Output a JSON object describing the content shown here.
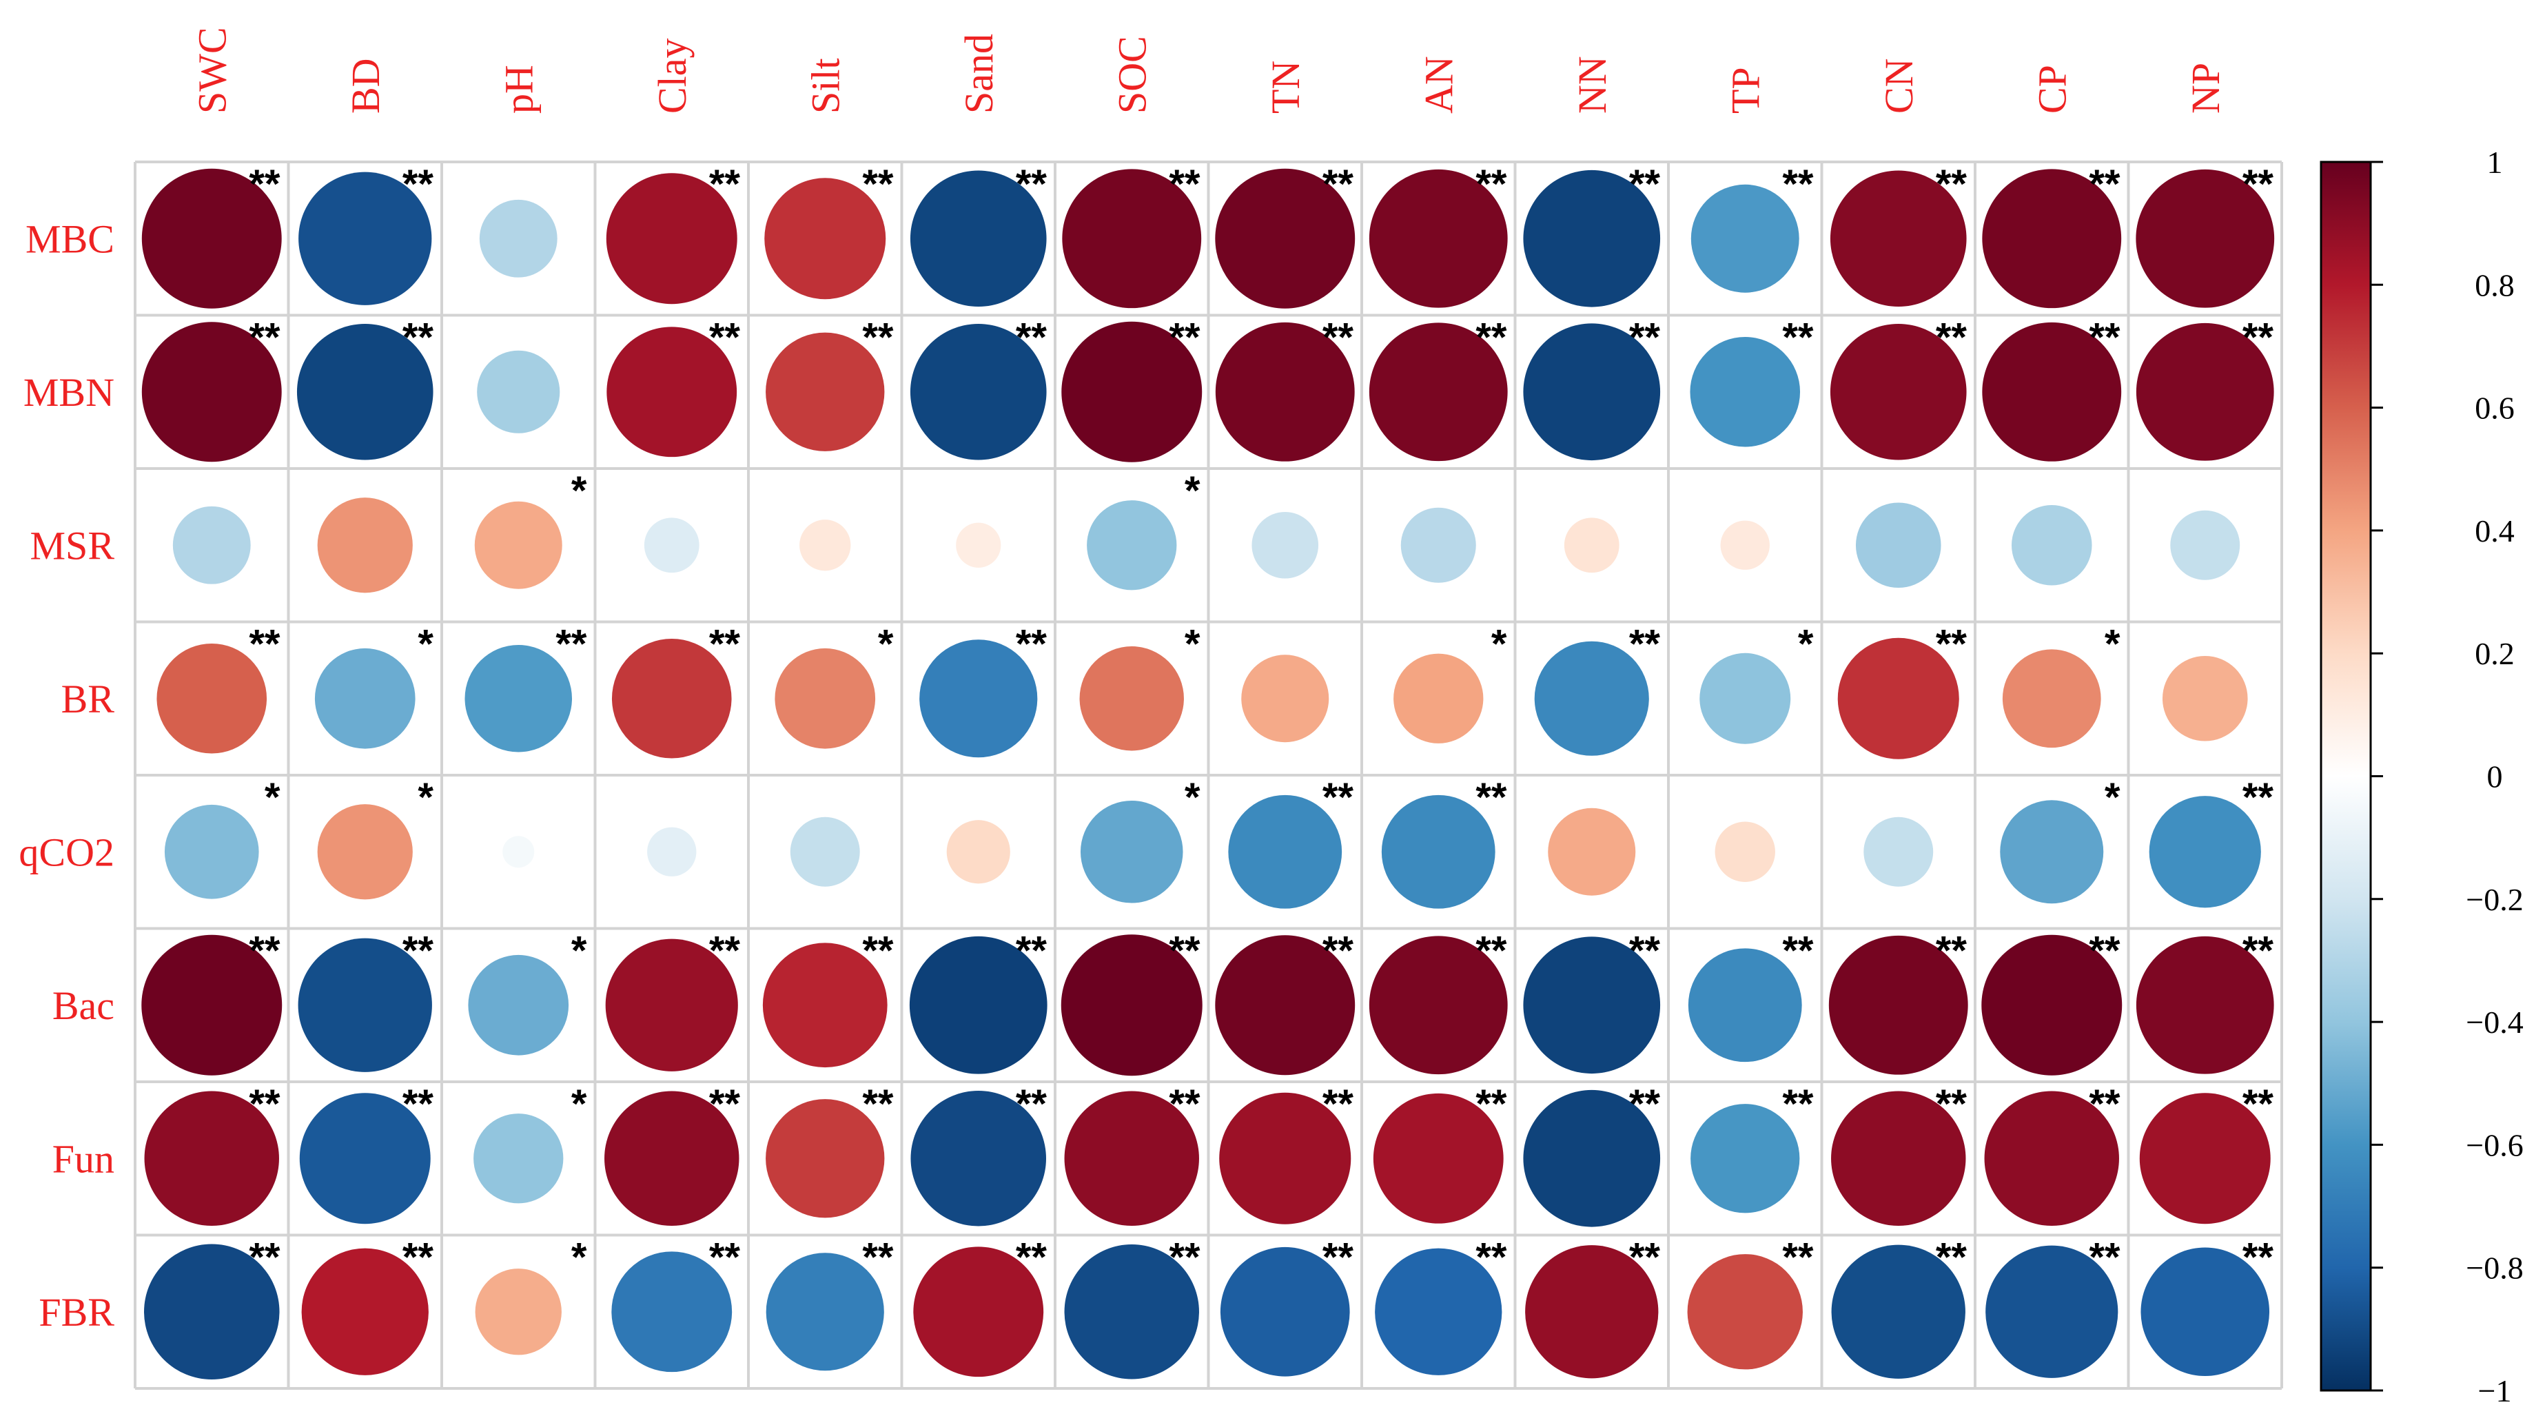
{
  "chart_data": {
    "type": "heatmap",
    "subtype": "correlation-circle-matrix",
    "columns": [
      "SWC",
      "BD",
      "pH",
      "Clay",
      "Silt",
      "Sand",
      "SOC",
      "TN",
      "AN",
      "NN",
      "TP",
      "CN",
      "CP",
      "NP"
    ],
    "rows": [
      "MBC",
      "MBN",
      "MSR",
      "BR",
      "qCO2",
      "Bac",
      "Fun",
      "FBR"
    ],
    "values": [
      [
        0.97,
        -0.88,
        -0.3,
        0.85,
        0.73,
        -0.92,
        0.96,
        0.97,
        0.95,
        -0.93,
        -0.58,
        0.92,
        0.96,
        0.95
      ],
      [
        0.97,
        -0.92,
        -0.34,
        0.84,
        0.7,
        -0.92,
        0.98,
        0.96,
        0.95,
        -0.93,
        -0.6,
        0.92,
        0.96,
        0.94
      ],
      [
        -0.3,
        0.45,
        0.38,
        -0.15,
        0.13,
        0.1,
        -0.4,
        -0.22,
        -0.28,
        0.15,
        0.12,
        -0.36,
        -0.32,
        -0.24
      ],
      [
        0.6,
        -0.5,
        -0.57,
        0.71,
        0.5,
        -0.69,
        0.54,
        0.38,
        0.4,
        -0.65,
        -0.41,
        0.73,
        0.48,
        0.36
      ],
      [
        -0.44,
        0.45,
        -0.05,
        -0.12,
        -0.24,
        0.2,
        -0.52,
        -0.64,
        -0.64,
        0.38,
        0.18,
        -0.24,
        -0.53,
        -0.62
      ],
      [
        0.98,
        -0.89,
        -0.5,
        0.87,
        0.77,
        -0.94,
        0.99,
        0.97,
        0.95,
        -0.93,
        -0.64,
        0.96,
        0.98,
        0.94
      ],
      [
        0.9,
        -0.85,
        -0.4,
        0.9,
        0.7,
        -0.91,
        0.9,
        0.86,
        0.84,
        -0.93,
        -0.59,
        0.9,
        0.9,
        0.85
      ],
      [
        -0.91,
        0.8,
        0.37,
        -0.72,
        -0.69,
        0.84,
        -0.9,
        -0.83,
        -0.8,
        0.88,
        0.66,
        -0.89,
        -0.87,
        -0.82
      ]
    ],
    "significance": [
      [
        "**",
        "**",
        "",
        "**",
        "**",
        "**",
        "**",
        "**",
        "**",
        "**",
        "**",
        "**",
        "**",
        "**"
      ],
      [
        "**",
        "**",
        "",
        "**",
        "**",
        "**",
        "**",
        "**",
        "**",
        "**",
        "**",
        "**",
        "**",
        "**"
      ],
      [
        "",
        "",
        "*",
        "",
        "",
        "",
        "*",
        "",
        "",
        "",
        "",
        "",
        "",
        ""
      ],
      [
        "**",
        "*",
        "**",
        "**",
        "*",
        "**",
        "*",
        "",
        "*",
        "**",
        "*",
        "**",
        "*",
        ""
      ],
      [
        "*",
        "*",
        "",
        "",
        "",
        "",
        "*",
        "**",
        "**",
        "",
        "",
        "",
        "*",
        "**"
      ],
      [
        "**",
        "**",
        "*",
        "**",
        "**",
        "**",
        "**",
        "**",
        "**",
        "**",
        "**",
        "**",
        "**",
        "**"
      ],
      [
        "**",
        "**",
        "*",
        "**",
        "**",
        "**",
        "**",
        "**",
        "**",
        "**",
        "**",
        "**",
        "**",
        "**"
      ],
      [
        "**",
        "**",
        "*",
        "**",
        "**",
        "**",
        "**",
        "**",
        "**",
        "**",
        "**",
        "**",
        "**",
        "**"
      ]
    ],
    "colorbar": {
      "range": [
        -1,
        1
      ],
      "ticks": [
        1,
        0.8,
        0.6,
        0.4,
        0.2,
        0,
        -0.2,
        -0.4,
        -0.6,
        -0.8,
        -1
      ],
      "tick_labels": [
        "1",
        "0.8",
        "0.6",
        "0.4",
        "0.2",
        "0",
        "−0.2",
        "−0.4",
        "−0.6",
        "−0.8",
        "−1"
      ],
      "colors": [
        "#67001F",
        "#B2182B",
        "#D6604D",
        "#F4A582",
        "#FDDBC7",
        "#FFFFFF",
        "#D1E5F0",
        "#92C5DE",
        "#4393C3",
        "#2166AC",
        "#053061"
      ]
    },
    "label_color": "#EE2222",
    "grid_color": "#D3D3D3"
  }
}
